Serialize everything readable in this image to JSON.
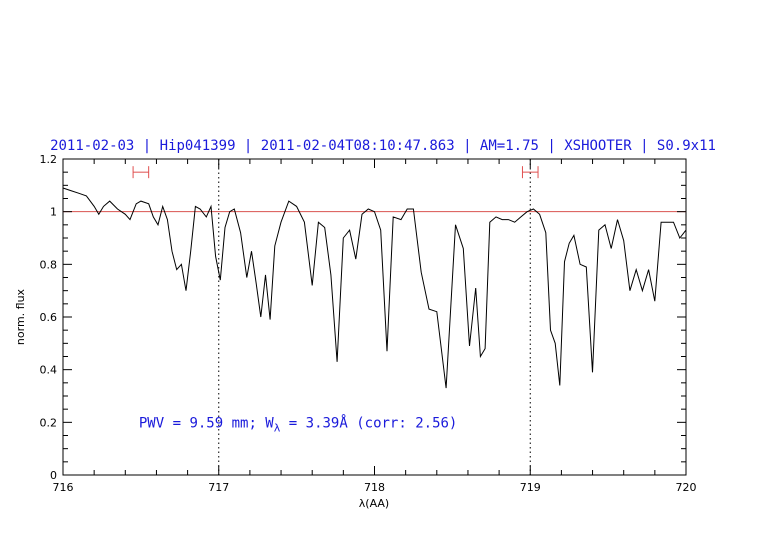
{
  "chart_data": {
    "type": "line",
    "title": "2011-02-03 | Hip041399 | 2011-02-04T08:10:47.863 | AM=1.75 | XSHOOTER | S0.9x11",
    "xlabel": "λ(AA)",
    "ylabel": "norm. flux",
    "xlim": [
      716,
      720
    ],
    "ylim": [
      0,
      1.2
    ],
    "x_ticks": [
      "716",
      "717",
      "718",
      "719",
      "720"
    ],
    "y_ticks": [
      "0",
      "0.2",
      "0.4",
      "0.6",
      "0.8",
      "1",
      "1.2"
    ],
    "reference_line": {
      "y": 1.0,
      "color": "#d9534f"
    },
    "vertical_markers": [
      717.0,
      719.0
    ],
    "range_markers": [
      {
        "from": 716.45,
        "to": 716.55,
        "y": 1.15,
        "color": "#e05050"
      },
      {
        "from": 718.95,
        "to": 719.05,
        "y": 1.15,
        "color": "#e05050"
      }
    ],
    "annotation": {
      "prefix": "PWV = 9.59 mm; W",
      "sub": "λ",
      "suffix": " = 3.39Å (corr: 2.56)",
      "x": 716.5,
      "y": 0.2
    },
    "series": [
      {
        "color": "#000000",
        "x": [
          716.0,
          716.05,
          716.1,
          716.15,
          716.2,
          716.23,
          716.26,
          716.3,
          716.35,
          716.4,
          716.43,
          716.47,
          716.5,
          716.55,
          716.58,
          716.61,
          716.64,
          716.67,
          716.7,
          716.73,
          716.76,
          716.79,
          716.82,
          716.85,
          716.88,
          716.92,
          716.95,
          716.98,
          717.01,
          717.04,
          717.07,
          717.1,
          717.14,
          717.18,
          717.21,
          717.24,
          717.27,
          717.3,
          717.33,
          717.36,
          717.4,
          717.45,
          717.5,
          717.55,
          717.6,
          717.64,
          717.68,
          717.72,
          717.76,
          717.8,
          717.84,
          717.88,
          717.92,
          717.96,
          718.0,
          718.04,
          718.08,
          718.12,
          718.17,
          718.21,
          718.25,
          718.3,
          718.35,
          718.4,
          718.46,
          718.52,
          718.57,
          718.61,
          718.65,
          718.68,
          718.71,
          718.74,
          718.78,
          718.82,
          718.86,
          718.9,
          718.94,
          718.98,
          719.02,
          719.06,
          719.1,
          719.13,
          719.16,
          719.19,
          719.22,
          719.25,
          719.28,
          719.32,
          719.36,
          719.4,
          719.44,
          719.48,
          719.52,
          719.56,
          719.6,
          719.64,
          719.68,
          719.72,
          719.76,
          719.8,
          719.84,
          719.88,
          719.92,
          719.96,
          720.0
        ],
        "y": [
          1.09,
          1.08,
          1.07,
          1.06,
          1.02,
          0.99,
          1.02,
          1.04,
          1.01,
          0.99,
          0.97,
          1.03,
          1.04,
          1.03,
          0.98,
          0.95,
          1.02,
          0.97,
          0.85,
          0.78,
          0.8,
          0.7,
          0.85,
          1.02,
          1.01,
          0.98,
          1.02,
          0.83,
          0.74,
          0.94,
          1.0,
          1.01,
          0.92,
          0.75,
          0.85,
          0.73,
          0.6,
          0.76,
          0.59,
          0.87,
          0.96,
          1.04,
          1.02,
          0.96,
          0.72,
          0.96,
          0.94,
          0.76,
          0.43,
          0.9,
          0.93,
          0.82,
          0.99,
          1.01,
          1.0,
          0.93,
          0.47,
          0.98,
          0.97,
          1.01,
          1.01,
          0.77,
          0.63,
          0.62,
          0.33,
          0.95,
          0.86,
          0.49,
          0.71,
          0.45,
          0.48,
          0.96,
          0.98,
          0.97,
          0.97,
          0.96,
          0.98,
          1.0,
          1.01,
          0.99,
          0.92,
          0.55,
          0.5,
          0.34,
          0.81,
          0.88,
          0.91,
          0.8,
          0.79,
          0.39,
          0.93,
          0.95,
          0.86,
          0.97,
          0.89,
          0.7,
          0.78,
          0.7,
          0.78,
          0.66,
          0.96,
          0.96,
          0.96,
          0.9,
          0.93
        ]
      }
    ]
  }
}
